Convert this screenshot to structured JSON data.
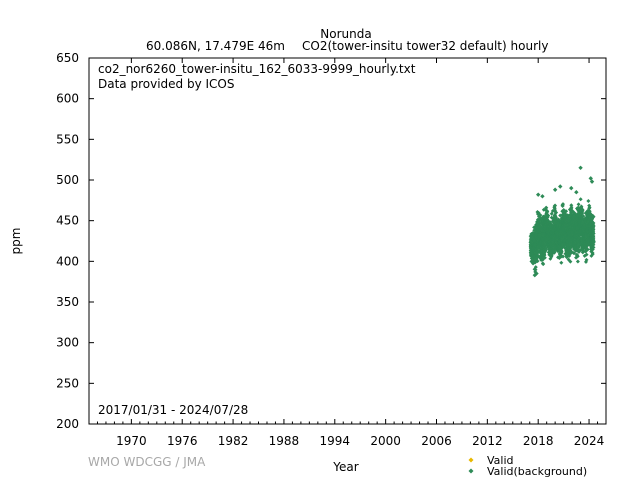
{
  "header": {
    "station": "Norunda",
    "location": "60.086N, 17.479E 46m",
    "description": "CO2(tower-insitu tower32 default) hourly"
  },
  "file_info": {
    "filename": "co2_nor6260_tower-insitu_162_6033-9999_hourly.txt",
    "provider": "Data provided by ICOS",
    "date_range": "2017/01/31 - 2024/07/28"
  },
  "credit": "WMO WDCGG / JMA",
  "chart_data": {
    "type": "scatter",
    "xlabel": "Year",
    "ylabel": "ppm",
    "xlim": [
      1965,
      2026
    ],
    "ylim": [
      200,
      650
    ],
    "xticks": [
      1970,
      1976,
      1982,
      1988,
      1994,
      2000,
      2006,
      2012,
      2018,
      2024
    ],
    "yticks": [
      200,
      250,
      300,
      350,
      400,
      450,
      500,
      550,
      600,
      650
    ],
    "grid": false,
    "legend_position": "bottom-right",
    "series": [
      {
        "name": "Valid",
        "color": "#e8b800",
        "marker": "diamond",
        "points": []
      },
      {
        "name": "Valid(background)",
        "color": "#2e8b57",
        "marker": "diamond",
        "seasonal_envelope": [
          {
            "x": 2017.1,
            "min": 400,
            "max": 435
          },
          {
            "x": 2017.4,
            "min": 392,
            "max": 440
          },
          {
            "x": 2017.7,
            "min": 385,
            "max": 450
          },
          {
            "x": 2018.0,
            "min": 405,
            "max": 470
          },
          {
            "x": 2018.4,
            "min": 395,
            "max": 455
          },
          {
            "x": 2018.7,
            "min": 388,
            "max": 465
          },
          {
            "x": 2019.0,
            "min": 408,
            "max": 472
          },
          {
            "x": 2019.4,
            "min": 398,
            "max": 452
          },
          {
            "x": 2019.7,
            "min": 392,
            "max": 462
          },
          {
            "x": 2020.0,
            "min": 410,
            "max": 475
          },
          {
            "x": 2020.4,
            "min": 398,
            "max": 455
          },
          {
            "x": 2020.7,
            "min": 393,
            "max": 465
          },
          {
            "x": 2021.0,
            "min": 410,
            "max": 478
          },
          {
            "x": 2021.4,
            "min": 400,
            "max": 458
          },
          {
            "x": 2021.7,
            "min": 394,
            "max": 468
          },
          {
            "x": 2022.0,
            "min": 412,
            "max": 478
          },
          {
            "x": 2022.4,
            "min": 400,
            "max": 458
          },
          {
            "x": 2022.7,
            "min": 396,
            "max": 470
          },
          {
            "x": 2023.0,
            "min": 412,
            "max": 480
          },
          {
            "x": 2023.4,
            "min": 402,
            "max": 460
          },
          {
            "x": 2023.7,
            "min": 398,
            "max": 472
          },
          {
            "x": 2024.0,
            "min": 414,
            "max": 478
          },
          {
            "x": 2024.3,
            "min": 404,
            "max": 462
          },
          {
            "x": 2024.55,
            "min": 402,
            "max": 455
          }
        ],
        "outliers": [
          {
            "x": 2023.0,
            "y": 515
          },
          {
            "x": 2024.2,
            "y": 502
          },
          {
            "x": 2024.35,
            "y": 498
          },
          {
            "x": 2020.6,
            "y": 492
          },
          {
            "x": 2020.0,
            "y": 488
          },
          {
            "x": 2021.9,
            "y": 490
          },
          {
            "x": 2018.0,
            "y": 482
          },
          {
            "x": 2018.5,
            "y": 480
          },
          {
            "x": 2022.5,
            "y": 485
          },
          {
            "x": 2017.6,
            "y": 383
          },
          {
            "x": 2017.8,
            "y": 385
          }
        ]
      }
    ]
  }
}
